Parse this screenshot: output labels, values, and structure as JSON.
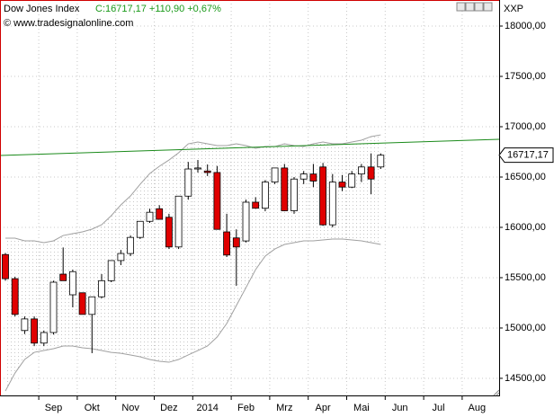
{
  "chart_data": {
    "type": "candlestick",
    "title": "Dow Jones Index",
    "subtitle": "C:16717,17 +110,90 +0,67%",
    "source": "© www.tradesignalonline.com",
    "symbol_code": "XXP",
    "last_price_label": "16717,17",
    "categories": [
      null,
      null,
      null,
      null,
      null,
      "Sep",
      null,
      null,
      null,
      "Okt",
      null,
      null,
      null,
      "Nov",
      null,
      null,
      null,
      "Dez",
      null,
      null,
      null,
      "2014",
      null,
      null,
      null,
      "Feb",
      null,
      null,
      null,
      "Mrz",
      null,
      null,
      null,
      "Apr",
      null,
      null,
      null,
      "Mai",
      null,
      null,
      null,
      "Jun",
      null,
      null,
      null,
      "Jul",
      null,
      null,
      null,
      "Aug",
      null,
      null
    ],
    "open": [
      15730,
      15490,
      14975,
      15090,
      14850,
      14955,
      15535,
      15330,
      15350,
      15135,
      15310,
      15470,
      15670,
      15740,
      15900,
      16060,
      16185,
      16100,
      15805,
      16310,
      16580,
      16560,
      16545,
      15955,
      15895,
      15865,
      16250,
      16190,
      16450,
      16590,
      16165,
      16480,
      16530,
      16600,
      16025,
      16450,
      16400,
      16530,
      16600,
      16600,
      null,
      null,
      null,
      null,
      null,
      null,
      null,
      null,
      null,
      null,
      null,
      null
    ],
    "high": [
      15745,
      15510,
      15115,
      15115,
      14975,
      15470,
      15800,
      15580,
      15350,
      15310,
      15535,
      15670,
      15775,
      15920,
      16060,
      16185,
      16220,
      16135,
      16310,
      16650,
      16670,
      16625,
      16610,
      16135,
      15980,
      16275,
      16300,
      16470,
      16590,
      16630,
      16500,
      16560,
      16630,
      16640,
      16530,
      16520,
      16560,
      16630,
      16735,
      16735,
      null,
      null,
      null,
      null,
      null,
      null,
      null,
      null,
      null,
      null,
      null,
      null
    ],
    "low": [
      15470,
      15115,
      14940,
      14820,
      14820,
      14935,
      15470,
      15205,
      15135,
      14750,
      15295,
      15455,
      15625,
      15715,
      15885,
      16045,
      16080,
      15785,
      15785,
      16275,
      16545,
      16510,
      15980,
      15705,
      15420,
      15850,
      16185,
      16160,
      16430,
      16160,
      16135,
      16430,
      16400,
      16015,
      16000,
      16360,
      16390,
      16450,
      16330,
      16580,
      null,
      null,
      null,
      null,
      null,
      null,
      null,
      null,
      null,
      null,
      null,
      null
    ],
    "close": [
      15490,
      15135,
      15090,
      14850,
      14955,
      15455,
      15470,
      15560,
      15135,
      15310,
      15470,
      15670,
      15740,
      15900,
      16060,
      16150,
      16080,
      15805,
      16310,
      16580,
      16590,
      16545,
      15980,
      15725,
      15805,
      16250,
      16190,
      16450,
      16590,
      16165,
      16480,
      16530,
      16460,
      16025,
      16450,
      16400,
      16530,
      16600,
      16480,
      16717.17,
      null,
      null,
      null,
      null,
      null,
      null,
      null,
      null,
      null,
      null,
      null,
      null
    ],
    "up_color": "#ffffff",
    "down_color": "#e00000",
    "bands": {
      "color": "#a0a0a0",
      "upper": [
        15893,
        15893,
        15866,
        15866,
        15848,
        15866,
        15919,
        15937,
        15955,
        15982,
        16026,
        16116,
        16223,
        16312,
        16428,
        16535,
        16607,
        16669,
        16741,
        16830,
        16848,
        16830,
        16812,
        16812,
        16830,
        16812,
        16786,
        16803,
        16803,
        16830,
        16812,
        16803,
        16830,
        16848,
        16830,
        16830,
        16848,
        16866,
        16902,
        16919,
        null,
        null,
        null,
        null,
        null,
        null,
        null,
        null,
        null,
        null,
        null,
        null
      ],
      "lower": [
        14374,
        14553,
        14687,
        14758,
        14776,
        14794,
        14821,
        14821,
        14803,
        14794,
        14776,
        14758,
        14749,
        14732,
        14714,
        14687,
        14669,
        14660,
        14687,
        14732,
        14776,
        14821,
        14910,
        15044,
        15223,
        15401,
        15580,
        15714,
        15785,
        15830,
        15848,
        15866,
        15866,
        15875,
        15884,
        15884,
        15875,
        15866,
        15848,
        15830,
        null,
        null,
        null,
        null,
        null,
        null,
        null,
        null,
        null,
        null,
        null,
        null
      ]
    },
    "trendline": {
      "color": "#1a8a1a",
      "values": [
        16714,
        16875
      ]
    },
    "ylim": [
      14330,
      18259
    ],
    "yticks": [
      {
        "value": 14500,
        "label": "14500,00"
      },
      {
        "value": 15000,
        "label": "15000,00"
      },
      {
        "value": 15500,
        "label": "15500,00"
      },
      {
        "value": 16000,
        "label": "16000,00"
      },
      {
        "value": 16500,
        "label": "16500,00"
      },
      {
        "value": 17000,
        "label": "17000,00"
      },
      {
        "value": 17500,
        "label": "17500,00"
      },
      {
        "value": 18000,
        "label": "18000,00"
      }
    ],
    "grid": true
  }
}
